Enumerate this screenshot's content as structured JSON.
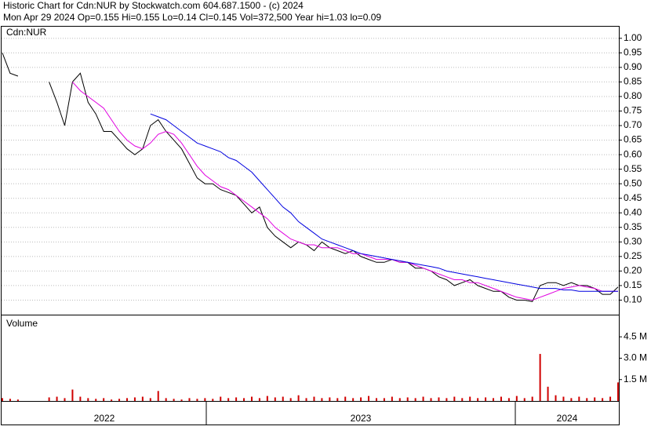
{
  "chart_data": [
    {
      "type": "line",
      "title": "Historic Chart for Cdn:NUR by Stockwatch.com 604.687.1500 - (c) 2024",
      "subtitle": "Mon Apr 29 2024  Op=0.155  Hi=0.155  Lo=0.14  Cl=0.145  Vol=372,500  Year hi=1.03  lo=0.09",
      "label": "Cdn:NUR",
      "x_labels": [
        "2022",
        "2023",
        "2024"
      ],
      "ylim": [
        0.05,
        1.04
      ],
      "yticks": [
        {
          "value": 0.1,
          "label": "0.10"
        },
        {
          "value": 0.15,
          "label": "0.15"
        },
        {
          "value": 0.2,
          "label": "0.20"
        },
        {
          "value": 0.25,
          "label": "0.25"
        },
        {
          "value": 0.3,
          "label": "0.30"
        },
        {
          "value": 0.35,
          "label": "0.35"
        },
        {
          "value": 0.4,
          "label": "0.40"
        },
        {
          "value": 0.45,
          "label": "0.45"
        },
        {
          "value": 0.5,
          "label": "0.50"
        },
        {
          "value": 0.55,
          "label": "0.55"
        },
        {
          "value": 0.6,
          "label": "0.60"
        },
        {
          "value": 0.65,
          "label": "0.65"
        },
        {
          "value": 0.7,
          "label": "0.70"
        },
        {
          "value": 0.75,
          "label": "0.75"
        },
        {
          "value": 0.8,
          "label": "0.80"
        },
        {
          "value": 0.85,
          "label": "0.85"
        },
        {
          "value": 0.9,
          "label": "0.90"
        },
        {
          "value": 0.95,
          "label": "0.95"
        },
        {
          "value": 1,
          "label": "1.00"
        }
      ],
      "grid": true,
      "series": [
        {
          "color": "#000000",
          "values": [
            0.95,
            0.88,
            0.87,
            null,
            null,
            null,
            0.85,
            0.78,
            0.7,
            0.85,
            0.88,
            0.78,
            0.74,
            0.68,
            0.68,
            0.65,
            0.62,
            0.6,
            0.62,
            0.7,
            0.72,
            0.68,
            0.65,
            0.62,
            0.57,
            0.52,
            0.5,
            0.5,
            0.48,
            0.47,
            0.46,
            0.43,
            0.4,
            0.42,
            0.35,
            0.32,
            0.3,
            0.28,
            0.3,
            0.29,
            0.27,
            0.3,
            0.28,
            0.27,
            0.26,
            0.27,
            0.25,
            0.24,
            0.23,
            0.23,
            0.24,
            0.23,
            0.23,
            0.21,
            0.21,
            0.2,
            0.18,
            0.17,
            0.15,
            0.16,
            0.17,
            0.15,
            0.14,
            0.13,
            0.13,
            0.11,
            0.1,
            0.1,
            0.095,
            0.15,
            0.16,
            0.16,
            0.15,
            0.16,
            0.15,
            0.15,
            0.14,
            0.12,
            0.12,
            0.145
          ]
        },
        {
          "color": "#e000e0",
          "values": [
            null,
            null,
            null,
            null,
            null,
            null,
            null,
            null,
            null,
            0.85,
            0.82,
            0.8,
            0.78,
            0.76,
            0.72,
            0.68,
            0.65,
            0.63,
            0.62,
            0.64,
            0.67,
            0.68,
            0.67,
            0.64,
            0.6,
            0.56,
            0.53,
            0.51,
            0.49,
            0.48,
            0.46,
            0.44,
            0.42,
            0.4,
            0.38,
            0.35,
            0.33,
            0.31,
            0.3,
            0.29,
            0.29,
            0.28,
            0.28,
            0.28,
            0.27,
            0.26,
            0.26,
            0.25,
            0.24,
            0.24,
            0.24,
            0.23,
            0.23,
            0.22,
            0.21,
            0.2,
            0.19,
            0.18,
            0.17,
            0.17,
            0.16,
            0.16,
            0.15,
            0.14,
            0.13,
            0.12,
            0.11,
            0.105,
            0.1,
            0.11,
            0.12,
            0.13,
            0.14,
            0.145,
            0.15,
            0.145,
            0.14,
            0.13,
            0.13,
            0.13
          ]
        },
        {
          "color": "#0000e0",
          "values": [
            null,
            null,
            null,
            null,
            null,
            null,
            null,
            null,
            null,
            null,
            null,
            null,
            null,
            null,
            null,
            null,
            null,
            null,
            null,
            0.74,
            0.73,
            0.72,
            0.7,
            0.68,
            0.66,
            0.64,
            0.63,
            0.62,
            0.61,
            0.59,
            0.58,
            0.56,
            0.54,
            0.51,
            0.48,
            0.45,
            0.42,
            0.4,
            0.37,
            0.35,
            0.33,
            0.31,
            0.3,
            0.29,
            0.28,
            0.27,
            0.26,
            0.255,
            0.25,
            0.245,
            0.24,
            0.235,
            0.23,
            0.225,
            0.22,
            0.215,
            0.21,
            0.2,
            0.195,
            0.19,
            0.185,
            0.18,
            0.175,
            0.17,
            0.165,
            0.16,
            0.155,
            0.15,
            0.145,
            0.14,
            0.14,
            0.14,
            0.135,
            0.135,
            0.13,
            0.13,
            0.13,
            0.13,
            0.13,
            0.13
          ]
        }
      ]
    },
    {
      "type": "bar",
      "title": "Volume",
      "ylim": [
        0,
        6
      ],
      "yticks": [
        {
          "value": 1.5,
          "label": "1.5 M"
        },
        {
          "value": 3,
          "label": "3.0 M"
        },
        {
          "value": 4.5,
          "label": "4.5 M"
        }
      ],
      "color": "#d00000",
      "values": [
        0.2,
        0.15,
        0.1,
        null,
        null,
        null,
        0.25,
        0.3,
        0.2,
        0.8,
        0.3,
        0.2,
        0.15,
        0.2,
        0.1,
        0.15,
        0.2,
        0.25,
        0.3,
        0.2,
        0.7,
        0.2,
        0.15,
        0.1,
        0.2,
        0.15,
        0.2,
        0.15,
        0.3,
        0.2,
        0.25,
        0.2,
        0.3,
        0.2,
        0.35,
        0.25,
        0.3,
        0.2,
        0.4,
        0.2,
        0.3,
        0.2,
        0.25,
        0.2,
        0.3,
        0.2,
        0.25,
        0.35,
        0.2,
        0.2,
        0.3,
        0.2,
        0.25,
        0.2,
        0.3,
        0.2,
        0.25,
        0.2,
        0.3,
        0.2,
        0.3,
        0.2,
        0.25,
        0.2,
        0.3,
        0.2,
        0.35,
        0.2,
        0.3,
        3.3,
        1.0,
        0.4,
        0.3,
        0.2,
        0.3,
        0.2,
        0.25,
        0.2,
        0.3,
        1.3
      ]
    }
  ]
}
